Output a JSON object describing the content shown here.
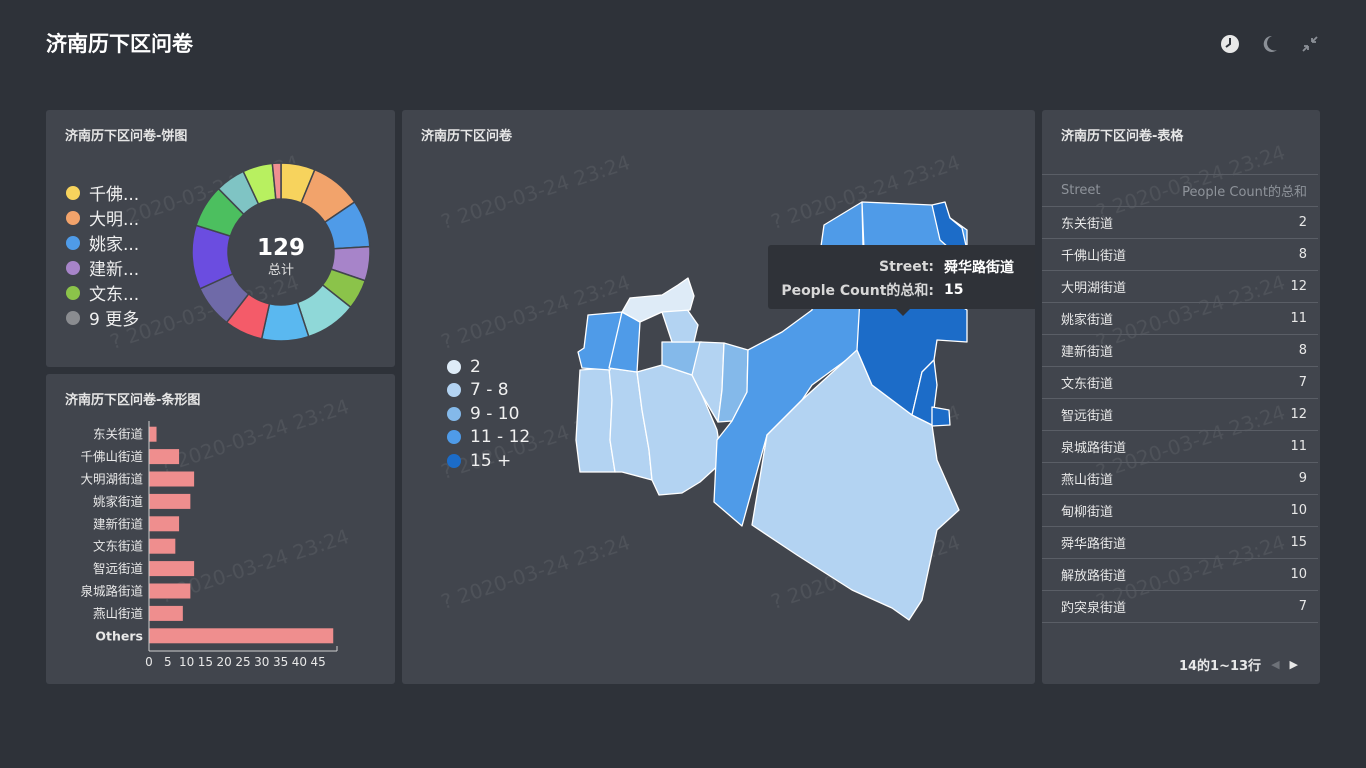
{
  "header": {
    "title": "济南历下区问卷"
  },
  "icons": {
    "clock": "clock-icon",
    "moon": "moon-icon",
    "collapse": "collapse-icon"
  },
  "watermark_text": "? 2020-03-24 23:24",
  "pie": {
    "title": "济南历下区问卷-饼图",
    "total": "129",
    "total_label": "总计",
    "legend": [
      {
        "label": "千佛...",
        "color": "#f7d35d"
      },
      {
        "label": "大明...",
        "color": "#f2a36b"
      },
      {
        "label": "姚家...",
        "color": "#4f9be8"
      },
      {
        "label": "建新...",
        "color": "#a784c9"
      },
      {
        "label": "文东...",
        "color": "#8bc34a"
      },
      {
        "label": "9 更多",
        "color": "#8a8c90"
      }
    ]
  },
  "bar": {
    "title": "济南历下区问卷-条形图"
  },
  "map": {
    "title": "济南历下区问卷",
    "legend": [
      {
        "label": "2",
        "color": "#deebf7"
      },
      {
        "label": "7 - 8",
        "color": "#b3d3f2"
      },
      {
        "label": "9 - 10",
        "color": "#84b9ea"
      },
      {
        "label": "11 - 12",
        "color": "#4f9be8"
      },
      {
        "label": "15 +",
        "color": "#1c6cc8"
      }
    ],
    "tooltip": {
      "street_key": "Street:",
      "street_value": "舜华路街道",
      "count_key": "People Count的总和:",
      "count_value": "15"
    }
  },
  "table": {
    "title": "济南历下区问卷-表格",
    "columns": [
      "Street",
      "People Count的总和"
    ],
    "rows": [
      [
        "东关街道",
        "2"
      ],
      [
        "千佛山街道",
        "8"
      ],
      [
        "大明湖街道",
        "12"
      ],
      [
        "姚家街道",
        "11"
      ],
      [
        "建新街道",
        "8"
      ],
      [
        "文东街道",
        "7"
      ],
      [
        "智远街道",
        "12"
      ],
      [
        "泉城路街道",
        "11"
      ],
      [
        "燕山街道",
        "9"
      ],
      [
        "甸柳街道",
        "10"
      ],
      [
        "舜华路街道",
        "15"
      ],
      [
        "解放路街道",
        "10"
      ],
      [
        "趵突泉街道",
        "7"
      ]
    ],
    "pager": "14的1~13行"
  },
  "chart_data": [
    {
      "type": "pie",
      "title": "济南历下区问卷-饼图",
      "total": 129,
      "slices": [
        {
          "name": "千佛山街道",
          "value": 8,
          "color": "#f7d35d"
        },
        {
          "name": "大明湖街道",
          "value": 12,
          "color": "#f2a36b"
        },
        {
          "name": "姚家街道",
          "value": 11,
          "color": "#4f9be8"
        },
        {
          "name": "建新街道",
          "value": 8,
          "color": "#a784c9"
        },
        {
          "name": "文东街道",
          "value": 7,
          "color": "#8bc34a"
        },
        {
          "name": "智远街道",
          "value": 12,
          "color": "#8fd8d8"
        },
        {
          "name": "泉城路街道",
          "value": 11,
          "color": "#5ab8f0"
        },
        {
          "name": "燕山街道",
          "value": 9,
          "color": "#f45b69"
        },
        {
          "name": "甸柳街道",
          "value": 10,
          "color": "#6f6aa8"
        },
        {
          "name": "舜华路街道",
          "value": 15,
          "color": "#6b4de0"
        },
        {
          "name": "解放路街道",
          "value": 10,
          "color": "#4cbf5f"
        },
        {
          "name": "趵突泉街道",
          "value": 7,
          "color": "#7fc4c4"
        },
        {
          "name": "other-1",
          "value": 7,
          "color": "#b8f060"
        },
        {
          "name": "东关街道",
          "value": 2,
          "color": "#f09090"
        }
      ]
    },
    {
      "type": "bar",
      "title": "济南历下区问卷-条形图",
      "orientation": "horizontal",
      "categories": [
        "东关街道",
        "千佛山街道",
        "大明湖街道",
        "姚家街道",
        "建新街道",
        "文东街道",
        "智远街道",
        "泉城路街道",
        "燕山街道",
        "Others"
      ],
      "values": [
        2,
        8,
        12,
        11,
        8,
        7,
        12,
        11,
        9,
        49
      ],
      "xticks": [
        0,
        5,
        10,
        15,
        20,
        25,
        30,
        35,
        40,
        45
      ],
      "xlim": [
        0,
        50
      ],
      "color": "#ef8e8e"
    }
  ]
}
